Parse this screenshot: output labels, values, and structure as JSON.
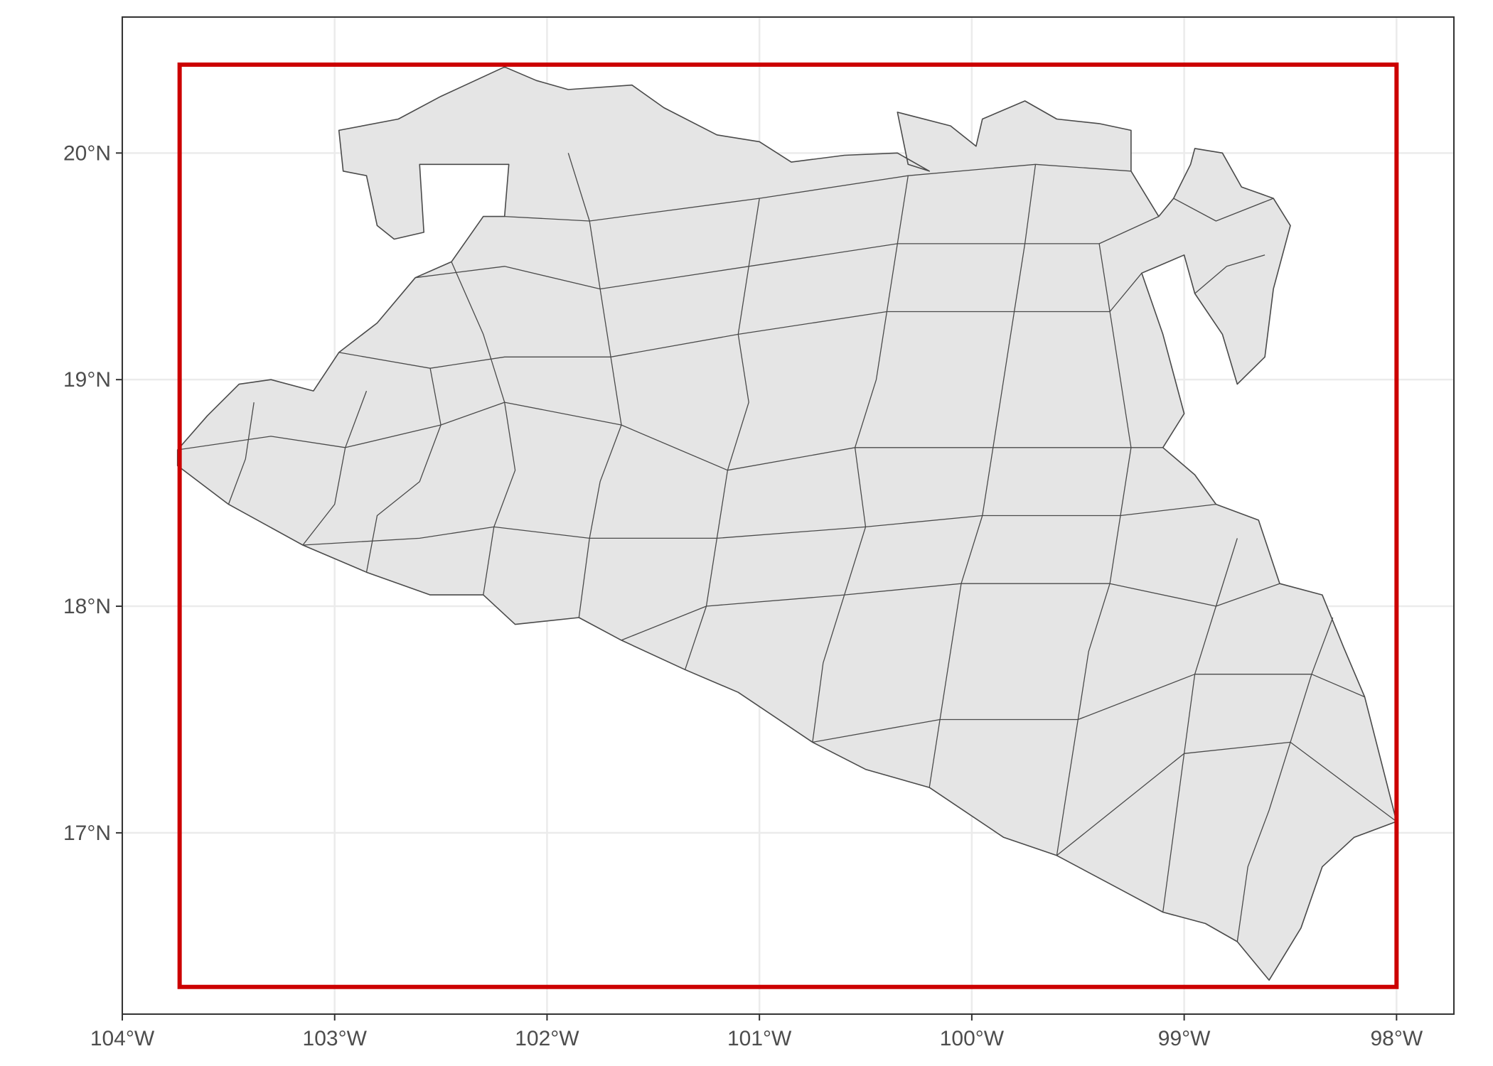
{
  "chart_data": {
    "type": "map",
    "title": "",
    "xlabel": "",
    "ylabel": "",
    "xlim": [
      -104.0,
      -97.73
    ],
    "ylim": [
      16.2,
      20.6
    ],
    "grid": true,
    "x_ticks": [
      {
        "value": -104,
        "label": "104°W"
      },
      {
        "value": -103,
        "label": "103°W"
      },
      {
        "value": -102,
        "label": "102°W"
      },
      {
        "value": -101,
        "label": "101°W"
      },
      {
        "value": -100,
        "label": "100°W"
      },
      {
        "value": -99,
        "label": "99°W"
      },
      {
        "value": -98,
        "label": "98°W"
      }
    ],
    "y_ticks": [
      {
        "value": 17,
        "label": "17°N"
      },
      {
        "value": 18,
        "label": "18°N"
      },
      {
        "value": 19,
        "label": "19°N"
      },
      {
        "value": 20,
        "label": "20°N"
      }
    ],
    "bounding_box": {
      "color": "#cc0000",
      "xmin": -103.73,
      "xmax": -98.0,
      "ymin": 16.32,
      "ymax": 20.39
    },
    "region_fill": "#e5e5e5",
    "region_outline": "#4a4a4a",
    "outline_lonlat": [
      [
        -103.74,
        18.69
      ],
      [
        -103.6,
        18.84
      ],
      [
        -103.45,
        18.98
      ],
      [
        -103.3,
        19.0
      ],
      [
        -103.1,
        18.95
      ],
      [
        -102.98,
        19.12
      ],
      [
        -102.8,
        19.25
      ],
      [
        -102.62,
        19.45
      ],
      [
        -102.45,
        19.52
      ],
      [
        -102.3,
        19.72
      ],
      [
        -102.2,
        19.72
      ],
      [
        -102.18,
        19.95
      ],
      [
        -102.6,
        19.95
      ],
      [
        -102.58,
        19.65
      ],
      [
        -102.72,
        19.62
      ],
      [
        -102.8,
        19.68
      ],
      [
        -102.85,
        19.9
      ],
      [
        -102.96,
        19.92
      ],
      [
        -102.98,
        20.1
      ],
      [
        -102.7,
        20.15
      ],
      [
        -102.5,
        20.25
      ],
      [
        -102.2,
        20.38
      ],
      [
        -102.05,
        20.32
      ],
      [
        -101.9,
        20.28
      ],
      [
        -101.6,
        20.3
      ],
      [
        -101.45,
        20.2
      ],
      [
        -101.2,
        20.08
      ],
      [
        -101.0,
        20.05
      ],
      [
        -100.85,
        19.96
      ],
      [
        -100.6,
        19.99
      ],
      [
        -100.35,
        20.0
      ],
      [
        -100.2,
        19.92
      ],
      [
        -100.3,
        19.95
      ],
      [
        -100.35,
        20.18
      ],
      [
        -100.1,
        20.12
      ],
      [
        -99.98,
        20.03
      ],
      [
        -99.95,
        20.15
      ],
      [
        -99.75,
        20.23
      ],
      [
        -99.6,
        20.15
      ],
      [
        -99.4,
        20.13
      ],
      [
        -99.25,
        20.1
      ],
      [
        -99.25,
        19.92
      ],
      [
        -99.12,
        19.72
      ],
      [
        -99.05,
        19.8
      ],
      [
        -98.97,
        19.95
      ],
      [
        -98.95,
        20.02
      ],
      [
        -98.82,
        20.0
      ],
      [
        -98.73,
        19.85
      ],
      [
        -98.58,
        19.8
      ],
      [
        -98.5,
        19.68
      ],
      [
        -98.58,
        19.4
      ],
      [
        -98.62,
        19.1
      ],
      [
        -98.75,
        18.98
      ],
      [
        -98.82,
        19.2
      ],
      [
        -98.95,
        19.38
      ],
      [
        -99.0,
        19.55
      ],
      [
        -99.2,
        19.47
      ],
      [
        -99.1,
        19.2
      ],
      [
        -99.0,
        18.85
      ],
      [
        -99.1,
        18.7
      ],
      [
        -98.95,
        18.58
      ],
      [
        -98.85,
        18.45
      ],
      [
        -98.65,
        18.38
      ],
      [
        -98.55,
        18.1
      ],
      [
        -98.35,
        18.05
      ],
      [
        -98.25,
        17.82
      ],
      [
        -98.15,
        17.6
      ],
      [
        -98.0,
        17.05
      ],
      [
        -98.2,
        16.98
      ],
      [
        -98.35,
        16.85
      ],
      [
        -98.45,
        16.58
      ],
      [
        -98.6,
        16.35
      ],
      [
        -98.75,
        16.52
      ],
      [
        -98.9,
        16.6
      ],
      [
        -99.1,
        16.65
      ],
      [
        -99.3,
        16.75
      ],
      [
        -99.6,
        16.9
      ],
      [
        -99.85,
        16.98
      ],
      [
        -100.2,
        17.2
      ],
      [
        -100.5,
        17.28
      ],
      [
        -100.75,
        17.4
      ],
      [
        -101.1,
        17.62
      ],
      [
        -101.35,
        17.72
      ],
      [
        -101.65,
        17.85
      ],
      [
        -101.85,
        17.95
      ],
      [
        -102.15,
        17.92
      ],
      [
        -102.3,
        18.05
      ],
      [
        -102.55,
        18.05
      ],
      [
        -102.85,
        18.15
      ],
      [
        -103.15,
        18.27
      ],
      [
        -103.5,
        18.45
      ],
      [
        -103.74,
        18.62
      ]
    ],
    "region_boundaries_lonlat": [
      [
        [
          -103.5,
          18.45
        ],
        [
          -103.42,
          18.65
        ],
        [
          -103.38,
          18.9
        ]
      ],
      [
        [
          -103.15,
          18.27
        ],
        [
          -103.0,
          18.45
        ],
        [
          -102.95,
          18.7
        ],
        [
          -102.85,
          18.95
        ]
      ],
      [
        [
          -102.85,
          18.15
        ],
        [
          -102.8,
          18.4
        ],
        [
          -102.6,
          18.55
        ],
        [
          -102.5,
          18.8
        ],
        [
          -102.55,
          19.05
        ]
      ],
      [
        [
          -102.3,
          18.05
        ],
        [
          -102.25,
          18.35
        ],
        [
          -102.15,
          18.6
        ],
        [
          -102.2,
          18.9
        ],
        [
          -102.3,
          19.2
        ],
        [
          -102.45,
          19.52
        ]
      ],
      [
        [
          -101.85,
          17.95
        ],
        [
          -101.8,
          18.3
        ],
        [
          -101.75,
          18.55
        ],
        [
          -101.65,
          18.8
        ],
        [
          -101.7,
          19.1
        ],
        [
          -101.75,
          19.4
        ],
        [
          -101.8,
          19.7
        ],
        [
          -101.9,
          20.0
        ]
      ],
      [
        [
          -101.35,
          17.72
        ],
        [
          -101.25,
          18.0
        ],
        [
          -101.2,
          18.3
        ],
        [
          -101.15,
          18.6
        ],
        [
          -101.05,
          18.9
        ],
        [
          -101.1,
          19.2
        ],
        [
          -101.05,
          19.5
        ],
        [
          -101.0,
          19.8
        ]
      ],
      [
        [
          -100.75,
          17.4
        ],
        [
          -100.7,
          17.75
        ],
        [
          -100.6,
          18.05
        ],
        [
          -100.5,
          18.35
        ],
        [
          -100.55,
          18.7
        ],
        [
          -100.45,
          19.0
        ],
        [
          -100.4,
          19.3
        ],
        [
          -100.35,
          19.6
        ],
        [
          -100.3,
          19.9
        ]
      ],
      [
        [
          -100.2,
          17.2
        ],
        [
          -100.15,
          17.5
        ],
        [
          -100.1,
          17.8
        ],
        [
          -100.05,
          18.1
        ],
        [
          -99.95,
          18.4
        ],
        [
          -99.9,
          18.7
        ],
        [
          -99.85,
          19.0
        ],
        [
          -99.8,
          19.3
        ],
        [
          -99.75,
          19.6
        ],
        [
          -99.7,
          19.95
        ]
      ],
      [
        [
          -99.6,
          16.9
        ],
        [
          -99.55,
          17.2
        ],
        [
          -99.5,
          17.5
        ],
        [
          -99.45,
          17.8
        ],
        [
          -99.35,
          18.1
        ],
        [
          -99.3,
          18.4
        ],
        [
          -99.25,
          18.7
        ],
        [
          -99.3,
          19.0
        ],
        [
          -99.35,
          19.3
        ],
        [
          -99.4,
          19.6
        ]
      ],
      [
        [
          -99.1,
          16.65
        ],
        [
          -99.05,
          17.0
        ],
        [
          -99.0,
          17.35
        ],
        [
          -98.95,
          17.7
        ],
        [
          -98.85,
          18.0
        ],
        [
          -98.75,
          18.3
        ]
      ],
      [
        [
          -98.75,
          16.52
        ],
        [
          -98.7,
          16.85
        ],
        [
          -98.6,
          17.1
        ],
        [
          -98.5,
          17.4
        ],
        [
          -98.4,
          17.7
        ],
        [
          -98.3,
          17.95
        ]
      ],
      [
        [
          -103.74,
          18.69
        ],
        [
          -103.3,
          18.75
        ],
        [
          -102.95,
          18.7
        ],
        [
          -102.5,
          18.8
        ],
        [
          -102.2,
          18.9
        ],
        [
          -101.65,
          18.8
        ],
        [
          -101.15,
          18.6
        ],
        [
          -100.55,
          18.7
        ],
        [
          -99.9,
          18.7
        ],
        [
          -99.25,
          18.7
        ],
        [
          -99.1,
          18.7
        ]
      ],
      [
        [
          -103.15,
          18.27
        ],
        [
          -102.6,
          18.3
        ],
        [
          -102.25,
          18.35
        ],
        [
          -101.8,
          18.3
        ],
        [
          -101.2,
          18.3
        ],
        [
          -100.5,
          18.35
        ],
        [
          -99.95,
          18.4
        ],
        [
          -99.3,
          18.4
        ],
        [
          -98.85,
          18.45
        ]
      ],
      [
        [
          -101.65,
          17.85
        ],
        [
          -101.25,
          18.0
        ],
        [
          -100.6,
          18.05
        ],
        [
          -100.05,
          18.1
        ],
        [
          -99.35,
          18.1
        ],
        [
          -98.85,
          18.0
        ],
        [
          -98.55,
          18.1
        ]
      ],
      [
        [
          -100.75,
          17.4
        ],
        [
          -100.15,
          17.5
        ],
        [
          -99.5,
          17.5
        ],
        [
          -98.95,
          17.7
        ],
        [
          -98.4,
          17.7
        ],
        [
          -98.15,
          17.6
        ]
      ],
      [
        [
          -99.6,
          16.9
        ],
        [
          -99.0,
          17.35
        ],
        [
          -98.5,
          17.4
        ],
        [
          -98.0,
          17.05
        ]
      ],
      [
        [
          -102.98,
          19.12
        ],
        [
          -102.55,
          19.05
        ],
        [
          -102.2,
          19.1
        ],
        [
          -101.7,
          19.1
        ],
        [
          -101.1,
          19.2
        ],
        [
          -100.4,
          19.3
        ],
        [
          -99.8,
          19.3
        ],
        [
          -99.35,
          19.3
        ],
        [
          -99.2,
          19.47
        ]
      ],
      [
        [
          -102.62,
          19.45
        ],
        [
          -102.2,
          19.5
        ],
        [
          -101.75,
          19.4
        ],
        [
          -101.05,
          19.5
        ],
        [
          -100.35,
          19.6
        ],
        [
          -99.75,
          19.6
        ],
        [
          -99.4,
          19.6
        ],
        [
          -99.12,
          19.72
        ]
      ],
      [
        [
          -102.2,
          19.72
        ],
        [
          -101.8,
          19.7
        ],
        [
          -101.0,
          19.8
        ],
        [
          -100.3,
          19.9
        ],
        [
          -99.7,
          19.95
        ],
        [
          -99.25,
          19.92
        ]
      ],
      [
        [
          -98.95,
          19.38
        ],
        [
          -98.8,
          19.5
        ],
        [
          -98.62,
          19.55
        ]
      ],
      [
        [
          -99.05,
          19.8
        ],
        [
          -98.85,
          19.7
        ],
        [
          -98.58,
          19.8
        ]
      ]
    ]
  }
}
